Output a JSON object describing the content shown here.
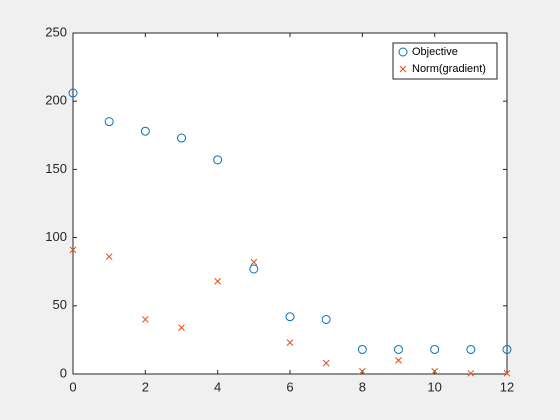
{
  "chart_data": {
    "type": "scatter",
    "x": [
      0,
      1,
      2,
      3,
      4,
      5,
      6,
      7,
      8,
      9,
      10,
      11,
      12
    ],
    "series": [
      {
        "name": "Objective",
        "color": "#0072bd",
        "marker": "o",
        "values": [
          206,
          185,
          178,
          173,
          157,
          77,
          42,
          40,
          18,
          18,
          18,
          18,
          18
        ]
      },
      {
        "name": "Norm(gradient)",
        "color": "#d95319",
        "marker": "x",
        "values": [
          91,
          86,
          40,
          34,
          68,
          82,
          23,
          8,
          2,
          10,
          2,
          0.5,
          0.5
        ]
      }
    ],
    "xlim": [
      0,
      12
    ],
    "xticks": [
      0,
      2,
      4,
      6,
      8,
      10,
      12
    ],
    "ylim": [
      0,
      250
    ],
    "yticks": [
      0,
      50,
      100,
      150,
      200,
      250
    ],
    "grid": false,
    "legend": "northeast"
  }
}
